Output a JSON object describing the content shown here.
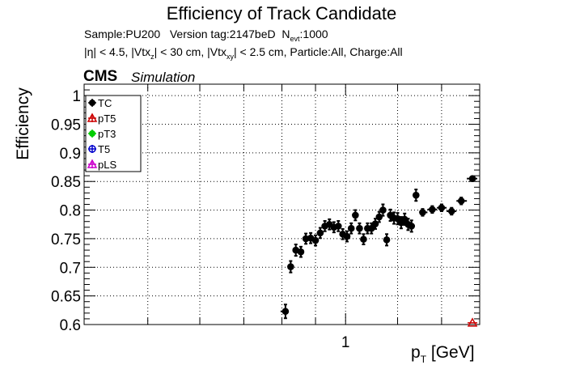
{
  "chart_data": {
    "type": "scatter",
    "title": "Efficiency of Track Candidate",
    "subtitle_line1": {
      "sample": "Sample:PU200",
      "version": "Version tag:2147beD",
      "n": "N",
      "n_sub": "evt",
      "n_val": ":1000"
    },
    "subtitle_line2": {
      "a": "|η| < 4.5, |Vtx",
      "a_sub": "z",
      "b": "| < 30 cm, |Vtx",
      "b_sub": "xy",
      "c": "| < 2.5 cm, Particle:All, Charge:All"
    },
    "cms_label": "CMS",
    "sim_label": "Simulation",
    "ylabel": "Efficiency",
    "xlabel_main": "p",
    "xlabel_sub": "T",
    "xlabel_unit": " [GeV]",
    "x_scale": "log",
    "xlim": [
      0.4,
      1.6
    ],
    "ylim": [
      0.6,
      1.02
    ],
    "yticks": [
      0.6,
      0.65,
      0.7,
      0.75,
      0.8,
      0.85,
      0.9,
      0.95,
      1
    ],
    "ytick_labels": [
      "0.6",
      "0.65",
      "0.7",
      "0.75",
      "0.8",
      "0.85",
      "0.9",
      "0.95",
      "1"
    ],
    "xticks": [
      1
    ],
    "xtick_labels": [
      "1"
    ],
    "grid": true,
    "legend_position": "top-left",
    "legend": [
      {
        "name": "TC",
        "color": "#000000",
        "marker": "filled-circle"
      },
      {
        "name": "pT5",
        "color": "#cc0000",
        "marker": "open-triangle"
      },
      {
        "name": "pT3",
        "color": "#00cc00",
        "marker": "filled-circle"
      },
      {
        "name": "T5",
        "color": "#0000cc",
        "marker": "open-circle"
      },
      {
        "name": "pLS",
        "color": "#cc00cc",
        "marker": "open-triangle"
      }
    ],
    "series": [
      {
        "name": "TC",
        "color": "#000000",
        "points": [
          {
            "x": 0.81,
            "y": 0.623,
            "ey": 0.012
          },
          {
            "x": 0.825,
            "y": 0.701,
            "ey": 0.01
          },
          {
            "x": 0.84,
            "y": 0.73,
            "ey": 0.01
          },
          {
            "x": 0.855,
            "y": 0.727,
            "ey": 0.009
          },
          {
            "x": 0.87,
            "y": 0.75,
            "ey": 0.009
          },
          {
            "x": 0.885,
            "y": 0.751,
            "ey": 0.009
          },
          {
            "x": 0.9,
            "y": 0.747,
            "ey": 0.009
          },
          {
            "x": 0.915,
            "y": 0.76,
            "ey": 0.009
          },
          {
            "x": 0.93,
            "y": 0.772,
            "ey": 0.009
          },
          {
            "x": 0.945,
            "y": 0.775,
            "ey": 0.009
          },
          {
            "x": 0.96,
            "y": 0.77,
            "ey": 0.009
          },
          {
            "x": 0.975,
            "y": 0.772,
            "ey": 0.009
          },
          {
            "x": 0.99,
            "y": 0.758,
            "ey": 0.009
          },
          {
            "x": 1.005,
            "y": 0.754,
            "ey": 0.009
          },
          {
            "x": 1.02,
            "y": 0.768,
            "ey": 0.009
          },
          {
            "x": 1.035,
            "y": 0.791,
            "ey": 0.009
          },
          {
            "x": 1.05,
            "y": 0.768,
            "ey": 0.009
          },
          {
            "x": 1.065,
            "y": 0.749,
            "ey": 0.009
          },
          {
            "x": 1.08,
            "y": 0.768,
            "ey": 0.009
          },
          {
            "x": 1.095,
            "y": 0.768,
            "ey": 0.009
          },
          {
            "x": 1.11,
            "y": 0.776,
            "ey": 0.009
          },
          {
            "x": 1.125,
            "y": 0.788,
            "ey": 0.009
          },
          {
            "x": 1.14,
            "y": 0.8,
            "ey": 0.01
          },
          {
            "x": 1.155,
            "y": 0.748,
            "ey": 0.01
          },
          {
            "x": 1.17,
            "y": 0.791,
            "ey": 0.01
          },
          {
            "x": 1.185,
            "y": 0.786,
            "ey": 0.01
          },
          {
            "x": 1.2,
            "y": 0.785,
            "ey": 0.01
          },
          {
            "x": 1.215,
            "y": 0.778,
            "ey": 0.01
          },
          {
            "x": 1.23,
            "y": 0.784,
            "ey": 0.01
          },
          {
            "x": 1.245,
            "y": 0.775,
            "ey": 0.01
          },
          {
            "x": 1.26,
            "y": 0.772,
            "ey": 0.01
          },
          {
            "x": 1.28,
            "y": 0.826,
            "ey": 0.01
          },
          {
            "x": 1.31,
            "y": 0.796,
            "ey": 0.006
          },
          {
            "x": 1.355,
            "y": 0.801,
            "ey": 0.006
          },
          {
            "x": 1.4,
            "y": 0.804,
            "ey": 0.006
          },
          {
            "x": 1.45,
            "y": 0.798,
            "ey": 0.006
          },
          {
            "x": 1.5,
            "y": 0.816,
            "ey": 0.006
          },
          {
            "x": 1.56,
            "y": 0.855,
            "ey": 0.004
          }
        ]
      },
      {
        "name": "pT5",
        "color": "#cc0000",
        "points": [
          {
            "x": 1.56,
            "y": 0.603,
            "ey": 0
          }
        ]
      }
    ]
  }
}
